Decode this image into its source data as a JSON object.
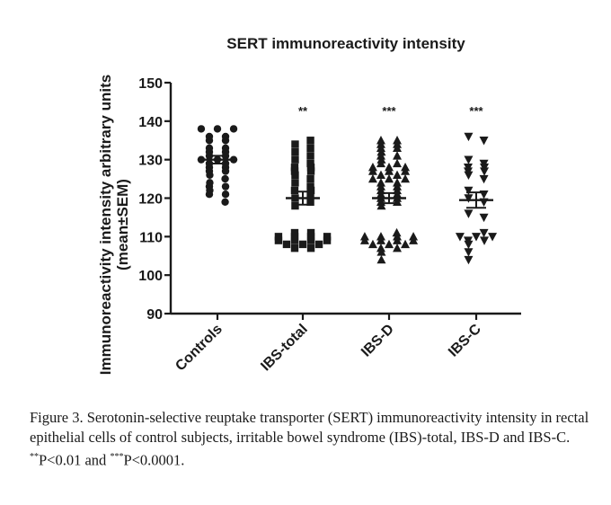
{
  "chart_data": {
    "type": "scatter",
    "title": "SERT immunoreactivity intensity",
    "ylabel_line1": "Immunoreactivity intensity arbitrary units",
    "ylabel_line2": "(mean±SEM)",
    "xlabel": "",
    "ylim": [
      90,
      150
    ],
    "yticks": [
      90,
      100,
      110,
      120,
      130,
      140,
      150
    ],
    "categories": [
      "Controls",
      "IBS-total",
      "IBS-D",
      "IBS-C"
    ],
    "series": [
      {
        "name": "Controls",
        "marker": "circle",
        "significance": "",
        "mean": 130,
        "sem": 1.0,
        "values": [
          138,
          138,
          138,
          136,
          136,
          135,
          135,
          133,
          133,
          132,
          132,
          131,
          131,
          130,
          130,
          130,
          129,
          129,
          128,
          128,
          127,
          127,
          126,
          125,
          124,
          123,
          123,
          122,
          121,
          121,
          119
        ]
      },
      {
        "name": "IBS-total",
        "marker": "square",
        "significance": "**",
        "mean": 120,
        "sem": 1.7,
        "values": [
          135,
          134,
          133,
          132,
          131,
          130,
          129,
          128,
          128,
          127,
          127,
          126,
          125,
          124,
          123,
          122,
          122,
          121,
          120,
          119,
          118,
          111,
          111,
          110,
          110,
          110,
          110,
          109,
          109,
          109,
          109,
          108,
          108,
          108,
          107,
          107
        ]
      },
      {
        "name": "IBS-D",
        "marker": "triangle-up",
        "significance": "***",
        "mean": 120,
        "sem": 1.3,
        "values": [
          135,
          135,
          134,
          134,
          133,
          133,
          132,
          131,
          131,
          130,
          129,
          129,
          128,
          128,
          128,
          127,
          127,
          127,
          126,
          126,
          125,
          125,
          125,
          124,
          124,
          123,
          123,
          122,
          122,
          121,
          121,
          120,
          120,
          119,
          119,
          118,
          111,
          110,
          110,
          110,
          110,
          109,
          109,
          109,
          109,
          108,
          108,
          108,
          107,
          107,
          106,
          104
        ]
      },
      {
        "name": "IBS-C",
        "marker": "triangle-down",
        "significance": "***",
        "mean": 119.5,
        "sem": 2.0,
        "values": [
          136,
          135,
          130,
          129,
          128,
          128,
          127,
          127,
          126,
          125,
          122,
          121,
          120,
          119,
          116,
          115,
          111,
          110,
          110,
          110,
          109,
          109,
          108,
          106,
          104
        ]
      }
    ]
  },
  "caption": {
    "main": "Figure 3. Serotonin-selective reuptake transporter (SERT) immunoreactivity intensity in rectal epithelial cells of control subjects, irritable bowel syndrome (IBS)-total, IBS-D and IBS-C. ",
    "sig1_marker": "**",
    "sig1_text": "P<0.01 and ",
    "sig2_marker": "***",
    "sig2_text": "P<0.0001."
  },
  "colors": {
    "ink": "#1a1a1a",
    "background": "#ffffff"
  }
}
